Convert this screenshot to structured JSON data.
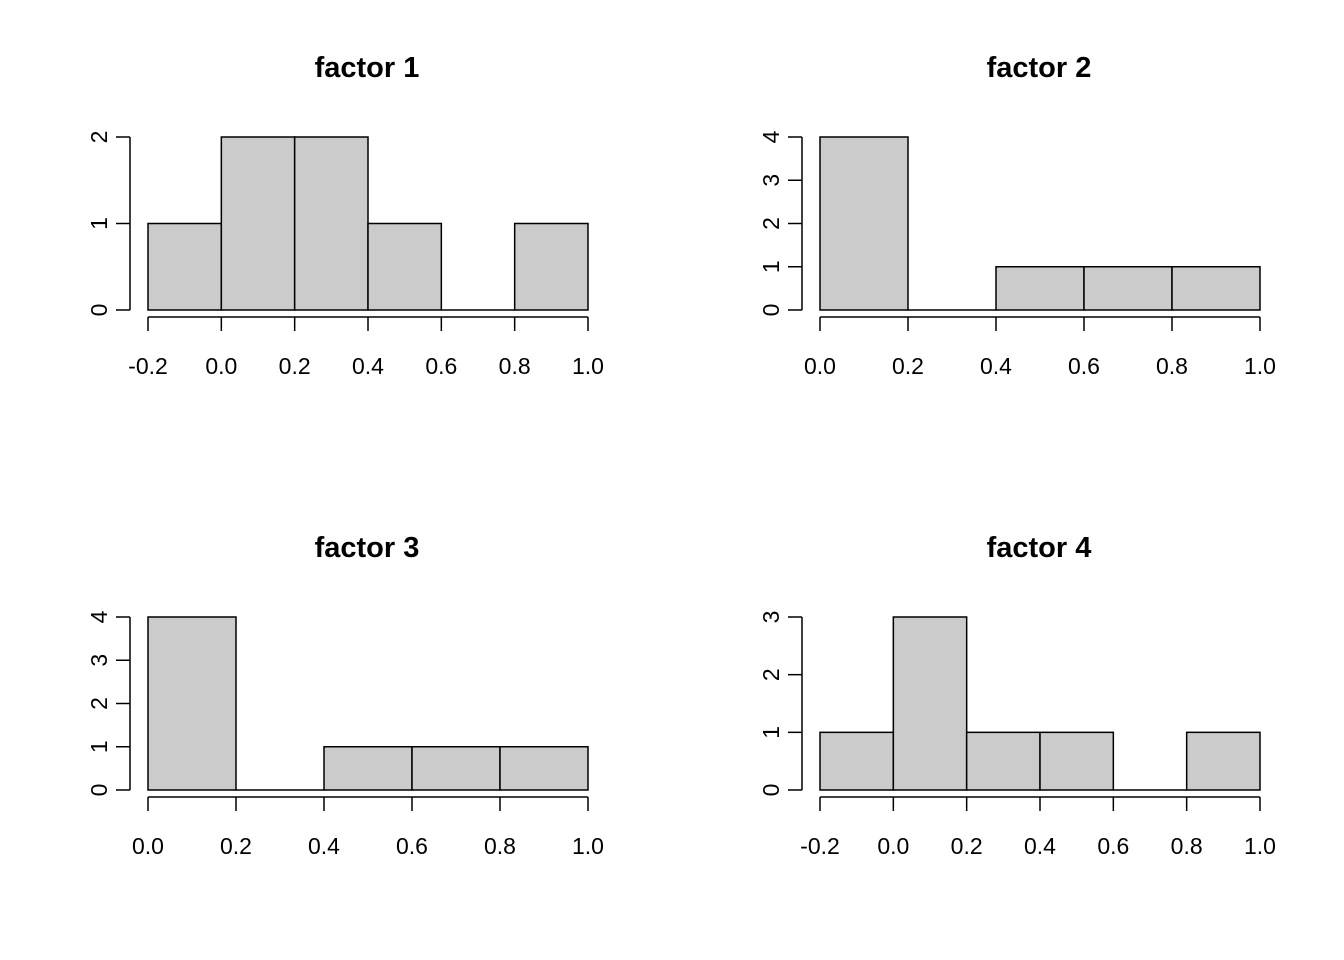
{
  "chart_data": [
    {
      "type": "bar",
      "title": "factor 1",
      "xlabel": "",
      "ylabel": "",
      "bins": [
        [
          -0.2,
          0.0
        ],
        [
          0.0,
          0.2
        ],
        [
          0.2,
          0.4
        ],
        [
          0.4,
          0.6
        ],
        [
          0.6,
          0.8
        ],
        [
          0.8,
          1.0
        ]
      ],
      "values": [
        1,
        2,
        2,
        1,
        0,
        1
      ],
      "xticks": [
        -0.2,
        0.0,
        0.2,
        0.4,
        0.6,
        0.8,
        1.0
      ],
      "xtick_labels": [
        "-0.2",
        "0.0",
        "0.2",
        "0.4",
        "0.6",
        "0.8",
        "1.0"
      ],
      "yticks": [
        0,
        1,
        2
      ],
      "ytick_labels": [
        "0",
        "1",
        "2"
      ],
      "xlim": [
        -0.2,
        1.0
      ],
      "ylim": [
        0,
        2
      ],
      "grid": false,
      "bar_color": "#cbcbcb"
    },
    {
      "type": "bar",
      "title": "factor 2",
      "xlabel": "",
      "ylabel": "",
      "bins": [
        [
          0.0,
          0.2
        ],
        [
          0.2,
          0.4
        ],
        [
          0.4,
          0.6
        ],
        [
          0.6,
          0.8
        ],
        [
          0.8,
          1.0
        ]
      ],
      "values": [
        4,
        0,
        1,
        1,
        1
      ],
      "xticks": [
        0.0,
        0.2,
        0.4,
        0.6,
        0.8,
        1.0
      ],
      "xtick_labels": [
        "0.0",
        "0.2",
        "0.4",
        "0.6",
        "0.8",
        "1.0"
      ],
      "yticks": [
        0,
        1,
        2,
        3,
        4
      ],
      "ytick_labels": [
        "0",
        "1",
        "2",
        "3",
        "4"
      ],
      "xlim": [
        0.0,
        1.0
      ],
      "ylim": [
        0,
        4
      ],
      "grid": false,
      "bar_color": "#cbcbcb"
    },
    {
      "type": "bar",
      "title": "factor 3",
      "xlabel": "",
      "ylabel": "",
      "bins": [
        [
          0.0,
          0.2
        ],
        [
          0.2,
          0.4
        ],
        [
          0.4,
          0.6
        ],
        [
          0.6,
          0.8
        ],
        [
          0.8,
          1.0
        ]
      ],
      "values": [
        4,
        0,
        1,
        1,
        1
      ],
      "xticks": [
        0.0,
        0.2,
        0.4,
        0.6,
        0.8,
        1.0
      ],
      "xtick_labels": [
        "0.0",
        "0.2",
        "0.4",
        "0.6",
        "0.8",
        "1.0"
      ],
      "yticks": [
        0,
        1,
        2,
        3,
        4
      ],
      "ytick_labels": [
        "0",
        "1",
        "2",
        "3",
        "4"
      ],
      "xlim": [
        0.0,
        1.0
      ],
      "ylim": [
        0,
        4
      ],
      "grid": false,
      "bar_color": "#cbcbcb"
    },
    {
      "type": "bar",
      "title": "factor 4",
      "xlabel": "",
      "ylabel": "",
      "bins": [
        [
          -0.2,
          0.0
        ],
        [
          0.0,
          0.2
        ],
        [
          0.2,
          0.4
        ],
        [
          0.4,
          0.6
        ],
        [
          0.6,
          0.8
        ],
        [
          0.8,
          1.0
        ]
      ],
      "values": [
        1,
        3,
        1,
        1,
        0,
        1
      ],
      "xticks": [
        -0.2,
        0.0,
        0.2,
        0.4,
        0.6,
        0.8,
        1.0
      ],
      "xtick_labels": [
        "-0.2",
        "0.0",
        "0.2",
        "0.4",
        "0.6",
        "0.8",
        "1.0"
      ],
      "yticks": [
        0,
        1,
        2,
        3
      ],
      "ytick_labels": [
        "0",
        "1",
        "2",
        "3"
      ],
      "xlim": [
        -0.2,
        1.0
      ],
      "ylim": [
        0,
        3
      ],
      "grid": false,
      "bar_color": "#cbcbcb"
    }
  ]
}
